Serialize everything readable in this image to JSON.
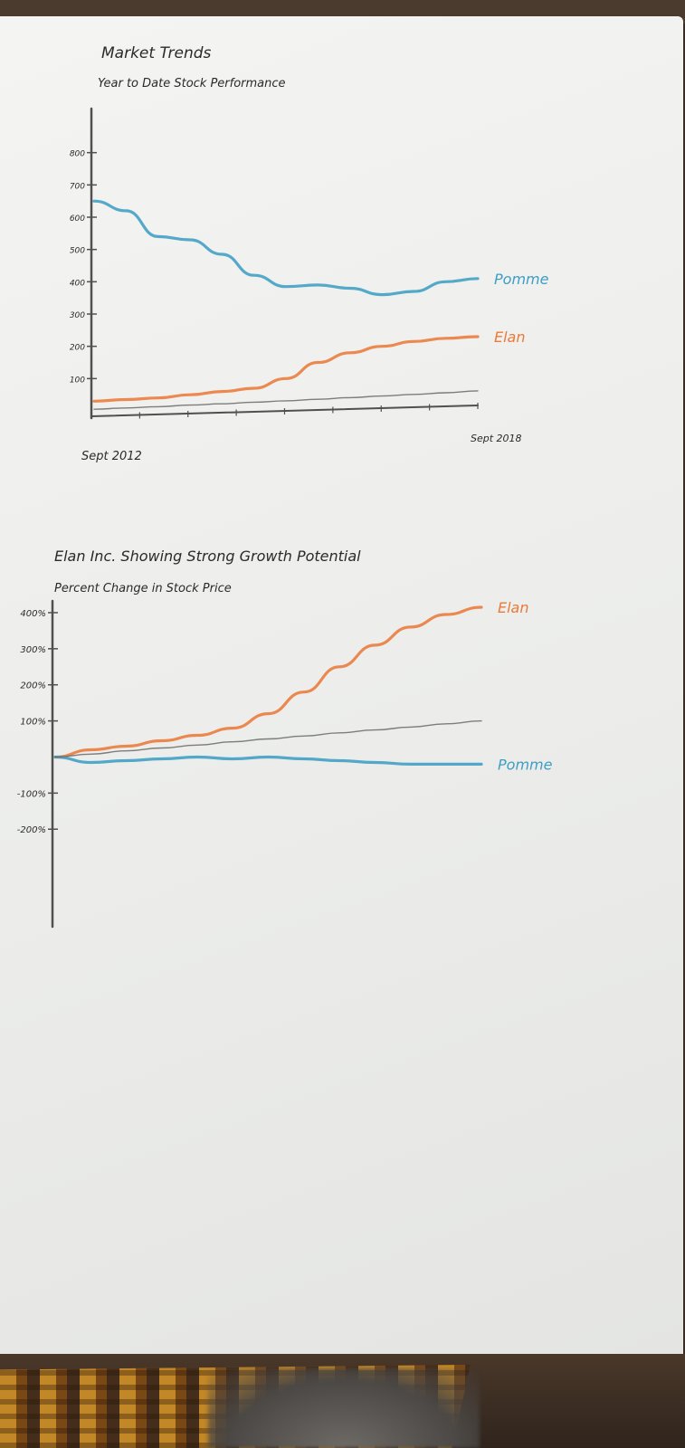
{
  "colors": {
    "pomme": "#3e9ec4",
    "elan": "#ea7a3a",
    "axis": "#505050",
    "ink": "#2a2a2a"
  },
  "chart_data": [
    {
      "type": "line",
      "title": "Market Trends",
      "subtitle": "Year to Date Stock Performance",
      "xlabel": "",
      "ylabel": "",
      "x_start_label": "Sept 2012",
      "x_end_label": "Sept 2018",
      "x": [
        0,
        0.5,
        1,
        1.5,
        2,
        2.5,
        3,
        3.5,
        4,
        4.5,
        5,
        5.5,
        6
      ],
      "xlim": [
        0,
        6
      ],
      "ylim": [
        0,
        900
      ],
      "yticks": [
        100,
        200,
        300,
        400,
        500,
        600,
        700,
        800
      ],
      "ytick_labels": [
        "100",
        "200",
        "300",
        "400",
        "500",
        "600",
        "700",
        "800"
      ],
      "series": [
        {
          "name": "Pomme",
          "color": "#3e9ec4",
          "values": [
            650,
            620,
            540,
            530,
            485,
            420,
            385,
            390,
            380,
            360,
            370,
            400,
            410
          ]
        },
        {
          "name": "Elan",
          "color": "#ea7a3a",
          "values": [
            30,
            35,
            40,
            50,
            60,
            70,
            100,
            150,
            180,
            200,
            215,
            225,
            230
          ]
        },
        {
          "name": "",
          "color": "#707070",
          "values": [
            5,
            9,
            13,
            18,
            22,
            27,
            31,
            36,
            41,
            46,
            51,
            56,
            62
          ]
        }
      ],
      "grid": false,
      "legend": "inline-right"
    },
    {
      "type": "line",
      "title": "Elan Inc. Showing Strong Growth Potential",
      "subtitle": "Percent Change in Stock Price",
      "xlabel": "",
      "ylabel": "",
      "x": [
        0,
        0.5,
        1,
        1.5,
        2,
        2.5,
        3,
        3.5,
        4,
        4.5,
        5,
        5.5,
        6
      ],
      "xlim": [
        0,
        6
      ],
      "ylim": [
        -380,
        430
      ],
      "yticks": [
        400,
        300,
        200,
        100,
        -100,
        -200
      ],
      "ytick_labels": [
        "400%",
        "300%",
        "200%",
        "100%",
        "-100%",
        "-200%"
      ],
      "series": [
        {
          "name": "Elan",
          "color": "#ea7a3a",
          "values": [
            0,
            20,
            30,
            45,
            60,
            80,
            120,
            180,
            250,
            310,
            360,
            395,
            415
          ]
        },
        {
          "name": "Pomme",
          "color": "#3e9ec4",
          "values": [
            0,
            -15,
            -10,
            -5,
            0,
            -5,
            0,
            -5,
            -10,
            -15,
            -20,
            -20,
            -20
          ]
        },
        {
          "name": "",
          "color": "#707070",
          "values": [
            0,
            8,
            17,
            25,
            33,
            42,
            50,
            58,
            67,
            75,
            83,
            92,
            100
          ]
        }
      ],
      "grid": false,
      "legend": "inline-right"
    }
  ]
}
